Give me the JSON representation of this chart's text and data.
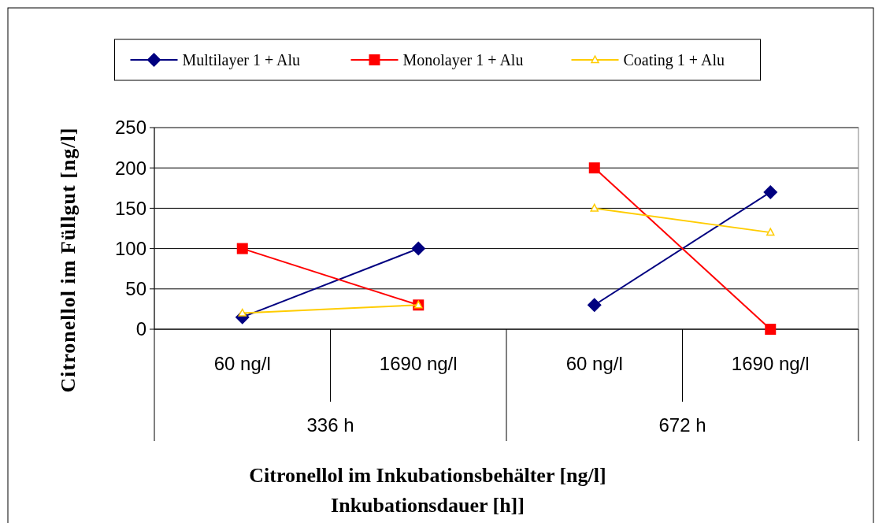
{
  "chart_data": {
    "type": "line",
    "ylabel": "Citronellol im Füllgut [ng/l]",
    "xlabel": "Citronellol im Inkubationsbehälter [ng/l]\nInkubationsdauer [h]]",
    "categories": [
      "60 ng/l",
      "1690 ng/l",
      "60 ng/l",
      "1690 ng/l"
    ],
    "annotations": [
      "336 h",
      "672 h"
    ],
    "ylim": [
      0,
      250
    ],
    "yticks": [
      0,
      50,
      100,
      150,
      200,
      250
    ],
    "grid": "y",
    "legend": "top",
    "series": [
      {
        "name": "Multilayer 1 + Alu",
        "color": "#000080",
        "marker": "diamond",
        "values": [
          15,
          100,
          null,
          null
        ]
      },
      {
        "color": "#000080",
        "marker": "diamond",
        "values": [
          null,
          null,
          30,
          170
        ]
      },
      {
        "name": "Monolayer 1 + Alu",
        "color": "#ff0000",
        "marker": "square",
        "values": [
          100,
          30,
          null,
          null
        ]
      },
      {
        "color": "#ff0000",
        "marker": "square",
        "values": [
          null,
          null,
          200,
          0
        ]
      },
      {
        "name": "Coating 1 + Alu",
        "color": "#ffcc00",
        "marker": "triangle",
        "values": [
          20,
          30,
          null,
          null
        ]
      },
      {
        "color": "#ffcc00",
        "marker": "triangle",
        "values": [
          null,
          null,
          150,
          120
        ]
      }
    ]
  }
}
